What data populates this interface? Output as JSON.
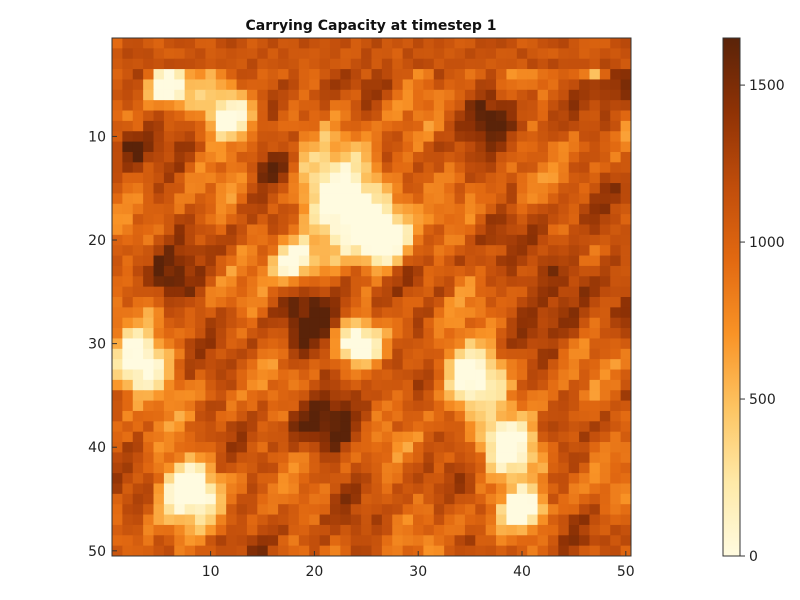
{
  "chart_data": {
    "type": "heatmap",
    "title": "Carrying Capacity at timestep 1",
    "xlabel": "",
    "ylabel": "",
    "grid_size": [
      50,
      50
    ],
    "x_range": [
      0.5,
      50.5
    ],
    "y_range": [
      0.5,
      50.5
    ],
    "y_reversed": true,
    "x_ticks": [
      10,
      20,
      30,
      40,
      50
    ],
    "y_ticks": [
      10,
      20,
      30,
      40,
      50
    ],
    "colorbar": {
      "range": [
        0,
        1650
      ],
      "ticks": [
        0,
        500,
        1000,
        1500
      ],
      "colormap": [
        "#fffbe0",
        "#fee9a7",
        "#fdc462",
        "#f99326",
        "#e26911",
        "#c04d0b",
        "#8f3205",
        "#5a2309"
      ]
    },
    "pattern": {
      "seed": 1,
      "max": 1650,
      "light_regions": [
        [
          23,
          16,
          4.5
        ],
        [
          27,
          20,
          2.5
        ],
        [
          12,
          8,
          2.5
        ],
        [
          6,
          5,
          2
        ],
        [
          3,
          32,
          3
        ],
        [
          8,
          44,
          3
        ],
        [
          39,
          40,
          3
        ],
        [
          35,
          33,
          3
        ],
        [
          24,
          30,
          2
        ],
        [
          40,
          46,
          2
        ],
        [
          18,
          22,
          2
        ],
        [
          47,
          3,
          1.5
        ]
      ],
      "dark_regions": [
        [
          44,
          24,
          3.5
        ],
        [
          49,
          4,
          2
        ],
        [
          6,
          24,
          2.5
        ],
        [
          20,
          28,
          3
        ],
        [
          21,
          38,
          3
        ],
        [
          37,
          8,
          2.5
        ],
        [
          16,
          13,
          2
        ],
        [
          2,
          11,
          1.5
        ]
      ],
      "values": [
        [
          935,
          1155,
          1162,
          1055,
          982,
          1131,
          1177,
          1160,
          1025,
          1022,
          1180,
          1245,
          1155,
          1017,
          1101,
          1210,
          1075,
          1090,
          1222,
          1140,
          1092,
          1150,
          1201,
          1033,
          1122,
          1244,
          1073,
          1127,
          1071,
          1207,
          1101,
          1166,
          1110,
          1027,
          1054,
          1204,
          1183,
          1226,
          1159,
          1008,
          1045,
          1146,
          1186,
          1236,
          1100,
          1018,
          1005,
          1006,
          1160,
          1213
        ],
        [
          1094,
          1229,
          1176,
          1191,
          1061,
          1005,
          1018,
          1109,
          1180,
          1038,
          1074,
          1126,
          1091,
          1074,
          1183,
          1042,
          1166,
          1075,
          1074,
          1049,
          1099,
          1155,
          1022,
          1034,
          1228,
          1069,
          1080,
          994,
          1217,
          1095,
          1085,
          1128,
          1051,
          1100,
          1206,
          1133,
          1154,
          1051,
          1060,
          1215,
          1085,
          1041,
          1014,
          1098,
          1111,
          1011,
          1062,
          1133,
          1082,
          1150
        ],
        [
          1066,
          1131,
          1099,
          1166,
          1130,
          1196,
          1178,
          1170,
          1129,
          1067,
          1123,
          1094,
          1055,
          1220,
          1067,
          1102,
          1139,
          1106,
          1011,
          1071,
          1128,
          1070,
          1032,
          1157,
          1223,
          1063,
          1209,
          1046,
          1139,
          1227,
          1199,
          1065,
          1145,
          1147,
          1112,
          1115,
          1048,
          1083,
          1094,
          1039,
          1223,
          1137,
          1236,
          1149,
          1154,
          1151,
          1083,
          1244,
          1172,
          1070
        ]
      ]
    }
  }
}
